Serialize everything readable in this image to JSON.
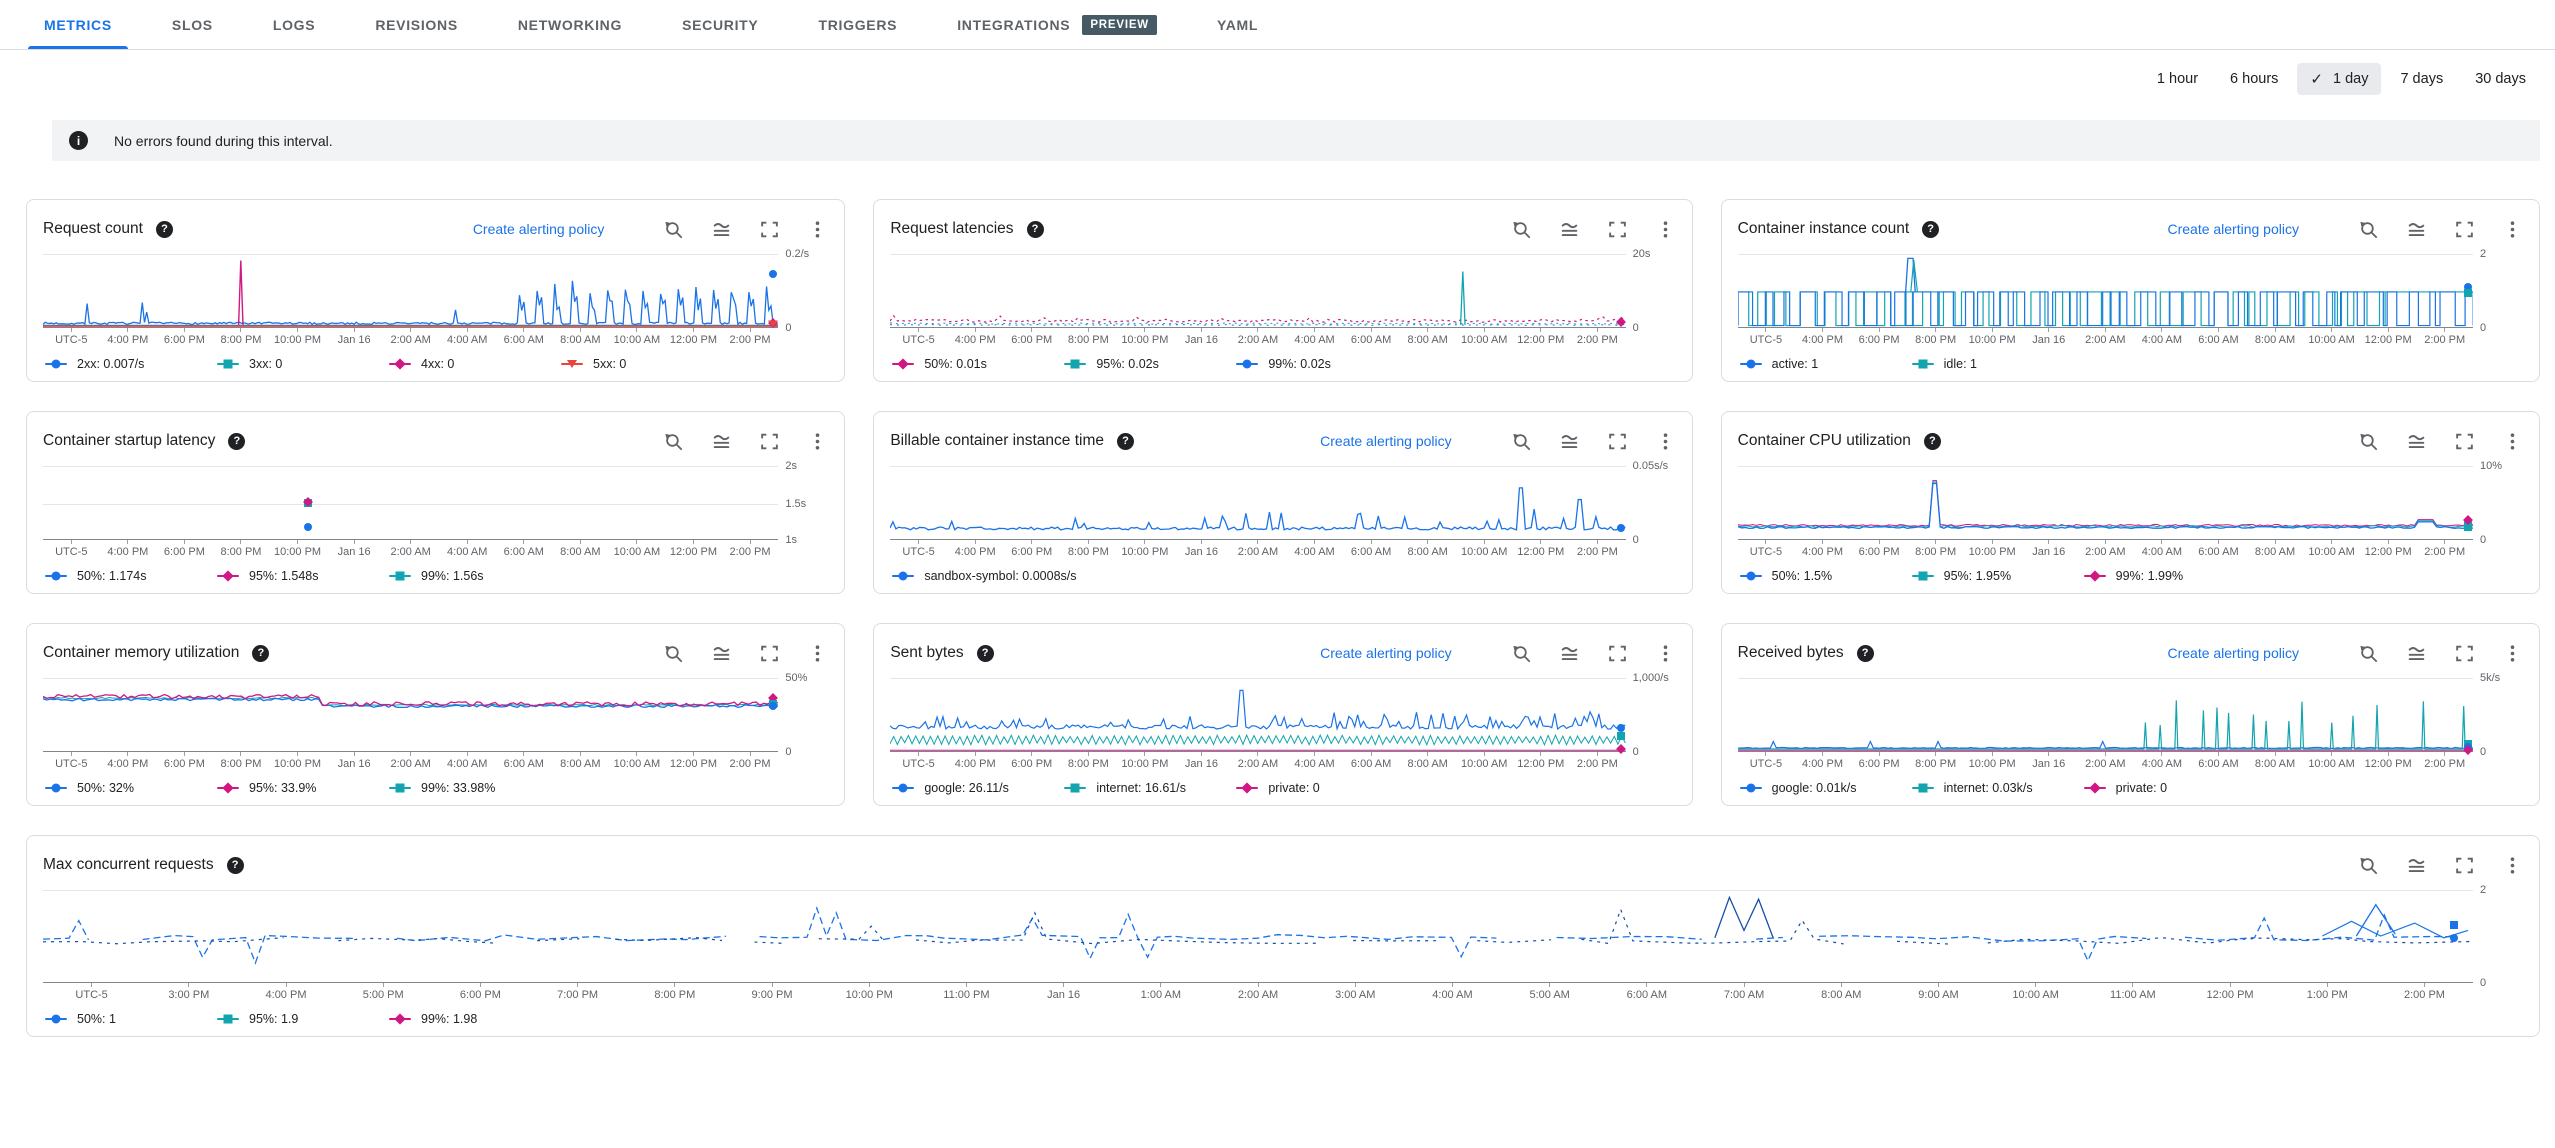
{
  "palette": {
    "blue": "#1a73e8",
    "teal": "#12a4af",
    "magenta": "#d01884",
    "red": "#e8453c",
    "navy": "#174ea6"
  },
  "icons": {
    "help_glyph": "?",
    "info_glyph": "i",
    "check_glyph": "✓",
    "header_icons": [
      "zoom-reset",
      "chart-options",
      "fullscreen",
      "more-options"
    ]
  },
  "tabs": {
    "items": [
      {
        "label": "METRICS",
        "active": true
      },
      {
        "label": "SLOS"
      },
      {
        "label": "LOGS"
      },
      {
        "label": "REVISIONS"
      },
      {
        "label": "NETWORKING"
      },
      {
        "label": "SECURITY"
      },
      {
        "label": "TRIGGERS"
      },
      {
        "label": "INTEGRATIONS",
        "badge": "PREVIEW"
      },
      {
        "label": "YAML"
      }
    ]
  },
  "time_range": {
    "options": [
      "1 hour",
      "6 hours",
      "1 day",
      "7 days",
      "30 days"
    ],
    "selected": "1 day"
  },
  "banner": {
    "text": "No errors found during this interval."
  },
  "actions": {
    "create_alerting_policy": "Create alerting policy"
  },
  "axes": {
    "day": [
      "UTC-5",
      "4:00 PM",
      "6:00 PM",
      "8:00 PM",
      "10:00 PM",
      "Jan 16",
      "2:00 AM",
      "4:00 AM",
      "6:00 AM",
      "8:00 AM",
      "10:00 AM",
      "12:00 PM",
      "2:00 PM"
    ],
    "hourly": [
      "UTC-5",
      "3:00 PM",
      "4:00 PM",
      "5:00 PM",
      "6:00 PM",
      "7:00 PM",
      "8:00 PM",
      "9:00 PM",
      "10:00 PM",
      "11:00 PM",
      "Jan 16",
      "1:00 AM",
      "2:00 AM",
      "3:00 AM",
      "4:00 AM",
      "5:00 AM",
      "6:00 AM",
      "7:00 AM",
      "8:00 AM",
      "9:00 AM",
      "10:00 AM",
      "11:00 AM",
      "12:00 PM",
      "1:00 PM",
      "2:00 PM"
    ]
  },
  "charts": [
    {
      "id": "request-count",
      "title": "Request count",
      "alert_link": true,
      "x_axis": "day",
      "y_top": "0.2/s",
      "y_bottom": "0",
      "legend": [
        {
          "text": "2xx: 0.007/s",
          "color": "blue",
          "marker": "circle"
        },
        {
          "text": "3xx: 0",
          "color": "teal",
          "marker": "square"
        },
        {
          "text": "4xx: 0",
          "color": "magenta",
          "marker": "diamond"
        },
        {
          "text": "5xx: 0",
          "color": "red",
          "marker": "triangle"
        }
      ],
      "chart_data": {
        "type": "line",
        "ylim": [
          0,
          0.2
        ],
        "y_unit": "/s",
        "x_range": "Jan 15 2:00 PM – Jan 16 2:00 PM UTC-5",
        "series": [
          {
            "name": "2xx",
            "current": "0.007/s"
          },
          {
            "name": "3xx",
            "current": "0"
          },
          {
            "name": "4xx",
            "current": "0"
          },
          {
            "name": "5xx",
            "current": "0"
          }
        ]
      }
    },
    {
      "id": "request-latencies",
      "title": "Request latencies",
      "alert_link": false,
      "x_axis": "day",
      "y_top": "20s",
      "y_bottom": "0",
      "legend": [
        {
          "text": "50%: 0.01s",
          "color": "magenta",
          "marker": "diamond"
        },
        {
          "text": "95%: 0.02s",
          "color": "teal",
          "marker": "square"
        },
        {
          "text": "99%: 0.02s",
          "color": "blue",
          "marker": "circle"
        }
      ],
      "chart_data": {
        "type": "line",
        "ylim": [
          0,
          20
        ],
        "y_unit": "s",
        "series": [
          {
            "name": "50%",
            "current": "0.01s"
          },
          {
            "name": "95%",
            "current": "0.02s"
          },
          {
            "name": "99%",
            "current": "0.02s"
          }
        ]
      }
    },
    {
      "id": "container-instance-count",
      "title": "Container instance count",
      "alert_link": true,
      "x_axis": "day",
      "y_top": "2",
      "y_bottom": "0",
      "legend": [
        {
          "text": "active: 1",
          "color": "blue",
          "marker": "circle"
        },
        {
          "text": "idle: 1",
          "color": "teal",
          "marker": "square"
        }
      ],
      "chart_data": {
        "type": "line",
        "ylim": [
          0,
          2
        ],
        "series": [
          {
            "name": "active",
            "current": "1"
          },
          {
            "name": "idle",
            "current": "1"
          }
        ]
      }
    },
    {
      "id": "container-startup-latency",
      "title": "Container startup latency",
      "alert_link": false,
      "x_axis": "day",
      "y_top": "2s",
      "y_mid": "1.5s",
      "y_bottom": "1s",
      "legend": [
        {
          "text": "50%: 1.174s",
          "color": "blue",
          "marker": "circle"
        },
        {
          "text": "95%: 1.548s",
          "color": "magenta",
          "marker": "diamond"
        },
        {
          "text": "99%: 1.56s",
          "color": "teal",
          "marker": "square"
        }
      ],
      "chart_data": {
        "type": "scatter",
        "ylim": [
          1,
          2
        ],
        "y_unit": "s",
        "points": [
          {
            "time": "≈10:40 PM",
            "p50": 1.174,
            "p95": 1.548,
            "p99": 1.56
          }
        ]
      }
    },
    {
      "id": "billable-container-instance-time",
      "title": "Billable container instance time",
      "alert_link": true,
      "x_axis": "day",
      "y_top": "0.05s/s",
      "y_bottom": "0",
      "legend": [
        {
          "text": "sandbox-symbol: 0.0008s/s",
          "color": "blue",
          "marker": "circle"
        }
      ],
      "chart_data": {
        "type": "line",
        "ylim": [
          0,
          0.05
        ],
        "y_unit": "s/s",
        "series": [
          {
            "name": "sandbox-symbol",
            "current": "0.0008s/s"
          }
        ]
      }
    },
    {
      "id": "container-cpu-utilization",
      "title": "Container CPU utilization",
      "alert_link": false,
      "x_axis": "day",
      "y_top": "10%",
      "y_bottom": "0",
      "legend": [
        {
          "text": "50%: 1.5%",
          "color": "blue",
          "marker": "circle"
        },
        {
          "text": "95%: 1.95%",
          "color": "teal",
          "marker": "square"
        },
        {
          "text": "99%: 1.99%",
          "color": "magenta",
          "marker": "diamond"
        }
      ],
      "chart_data": {
        "type": "line",
        "ylim": [
          0,
          10
        ],
        "y_unit": "%",
        "series": [
          {
            "name": "50%",
            "current": "1.5%"
          },
          {
            "name": "95%",
            "current": "1.95%"
          },
          {
            "name": "99%",
            "current": "1.99%"
          }
        ]
      }
    },
    {
      "id": "container-memory-utilization",
      "title": "Container memory utilization",
      "alert_link": false,
      "x_axis": "day",
      "y_top": "50%",
      "y_bottom": "0",
      "legend": [
        {
          "text": "50%: 32%",
          "color": "blue",
          "marker": "circle"
        },
        {
          "text": "95%: 33.9%",
          "color": "magenta",
          "marker": "diamond"
        },
        {
          "text": "99%: 33.98%",
          "color": "teal",
          "marker": "square"
        }
      ],
      "chart_data": {
        "type": "line",
        "ylim": [
          0,
          50
        ],
        "y_unit": "%",
        "series": [
          {
            "name": "50%",
            "current": "32%"
          },
          {
            "name": "95%",
            "current": "33.9%"
          },
          {
            "name": "99%",
            "current": "33.98%"
          }
        ]
      }
    },
    {
      "id": "sent-bytes",
      "title": "Sent bytes",
      "alert_link": true,
      "x_axis": "day",
      "y_top": "1,000/s",
      "y_bottom": "0",
      "legend": [
        {
          "text": "google: 26.11/s",
          "color": "blue",
          "marker": "circle"
        },
        {
          "text": "internet: 16.61/s",
          "color": "teal",
          "marker": "square"
        },
        {
          "text": "private: 0",
          "color": "magenta",
          "marker": "diamond"
        }
      ],
      "chart_data": {
        "type": "line",
        "ylim": [
          0,
          1000
        ],
        "y_unit": "/s",
        "series": [
          {
            "name": "google",
            "current": "26.11/s"
          },
          {
            "name": "internet",
            "current": "16.61/s"
          },
          {
            "name": "private",
            "current": "0"
          }
        ]
      }
    },
    {
      "id": "received-bytes",
      "title": "Received bytes",
      "alert_link": true,
      "x_axis": "day",
      "y_top": "5k/s",
      "y_bottom": "0",
      "legend": [
        {
          "text": "google: 0.01k/s",
          "color": "blue",
          "marker": "circle"
        },
        {
          "text": "internet: 0.03k/s",
          "color": "teal",
          "marker": "square"
        },
        {
          "text": "private: 0",
          "color": "magenta",
          "marker": "diamond"
        }
      ],
      "chart_data": {
        "type": "line",
        "ylim": [
          0,
          5
        ],
        "y_unit": "k/s",
        "series": [
          {
            "name": "google",
            "current": "0.01k/s"
          },
          {
            "name": "internet",
            "current": "0.03k/s"
          },
          {
            "name": "private",
            "current": "0"
          }
        ]
      }
    },
    {
      "id": "max-concurrent-requests",
      "title": "Max concurrent requests",
      "alert_link": false,
      "x_axis": "hourly",
      "y_top": "2",
      "y_bottom": "0",
      "legend": [
        {
          "text": "50%: 1",
          "color": "blue",
          "marker": "circle"
        },
        {
          "text": "95%: 1.9",
          "color": "teal",
          "marker": "square"
        },
        {
          "text": "99%: 1.98",
          "color": "magenta",
          "marker": "diamond"
        }
      ],
      "chart_data": {
        "type": "line",
        "ylim": [
          0,
          2
        ],
        "series": [
          {
            "name": "50%",
            "current": "1"
          },
          {
            "name": "95%",
            "current": "1.9"
          },
          {
            "name": "99%",
            "current": "1.98"
          }
        ]
      }
    }
  ]
}
